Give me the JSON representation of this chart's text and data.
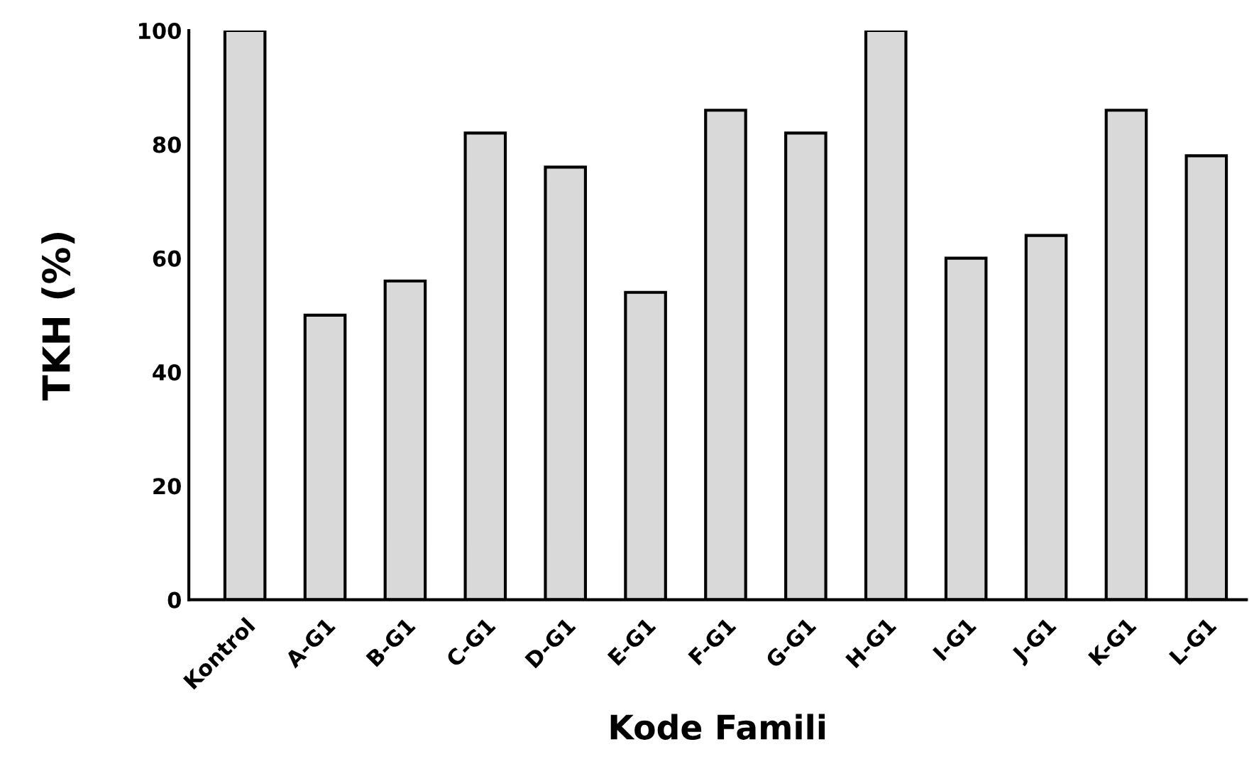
{
  "chart_data": {
    "type": "bar",
    "xlabel": "Kode Famili",
    "ylabel": "TKH (%)",
    "categories": [
      "Kontrol",
      "A-G1",
      "B-G1",
      "C-G1",
      "D-G1",
      "E-G1",
      "F-G1",
      "G-G1",
      "H-G1",
      "I-G1",
      "J-G1",
      "K-G1",
      "L-G1"
    ],
    "values": [
      100,
      50,
      56,
      82,
      76,
      54,
      86,
      82,
      100,
      60,
      64,
      86,
      78
    ],
    "color": "#d9d9d9",
    "ylim": [
      0,
      100
    ],
    "yticks": [
      0,
      20,
      40,
      60,
      80,
      100
    ],
    "grid": false,
    "legend": false
  }
}
